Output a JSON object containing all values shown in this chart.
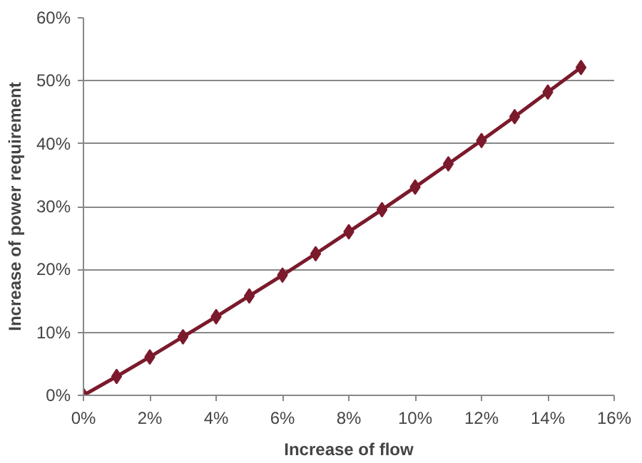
{
  "chart_data": {
    "type": "line",
    "xlabel": "Increase of flow",
    "ylabel": "Increase of power requirement",
    "x": [
      0,
      1,
      2,
      3,
      4,
      5,
      6,
      7,
      8,
      9,
      10,
      11,
      12,
      13,
      14,
      15
    ],
    "series": [
      {
        "color": "#7b1a2c",
        "values": [
          0,
          3.0,
          6.1,
          9.3,
          12.5,
          15.8,
          19.1,
          22.5,
          26.0,
          29.5,
          33.1,
          36.8,
          40.5,
          44.3,
          48.2,
          52.1
        ]
      }
    ],
    "xlim": [
      0,
      16
    ],
    "ylim": [
      0,
      60
    ],
    "xticks": [
      {
        "value": 0,
        "label": "0%"
      },
      {
        "value": 2,
        "label": "2%"
      },
      {
        "value": 4,
        "label": "4%"
      },
      {
        "value": 6,
        "label": "6%"
      },
      {
        "value": 8,
        "label": "8%"
      },
      {
        "value": 10,
        "label": "10%"
      },
      {
        "value": 12,
        "label": "12%"
      },
      {
        "value": 14,
        "label": "14%"
      },
      {
        "value": 16,
        "label": "16%"
      }
    ],
    "yticks": [
      {
        "value": 0,
        "label": "0%"
      },
      {
        "value": 10,
        "label": "10%"
      },
      {
        "value": 20,
        "label": "20%"
      },
      {
        "value": 30,
        "label": "30%"
      },
      {
        "value": 40,
        "label": "40%"
      },
      {
        "value": 50,
        "label": "50%"
      },
      {
        "value": 60,
        "label": "60%"
      }
    ],
    "grid": "y",
    "marker": "diamond",
    "line_style": "solid"
  }
}
